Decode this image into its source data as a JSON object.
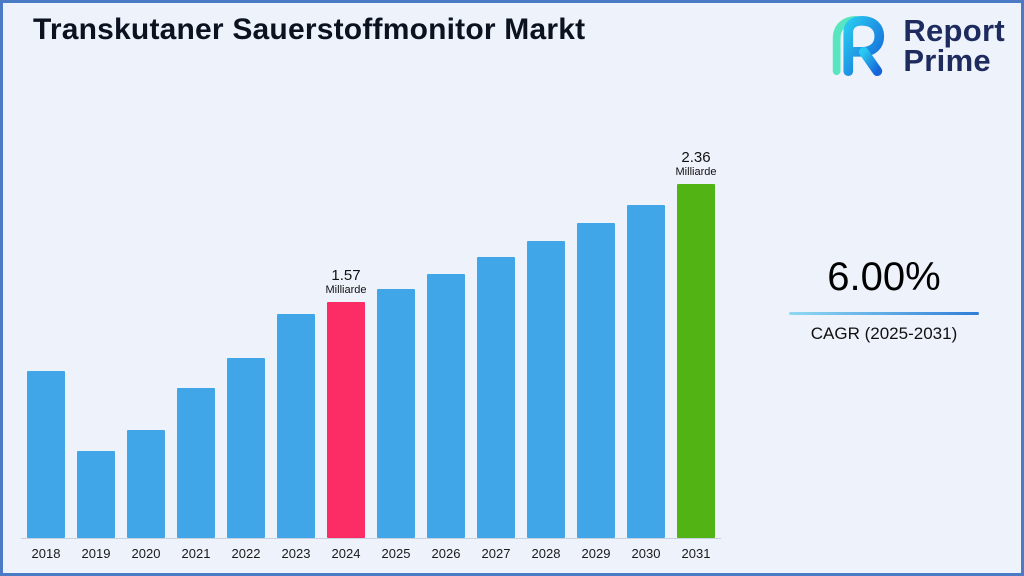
{
  "header": {
    "title": "Transkutaner Sauerstoffmonitor Markt"
  },
  "logo": {
    "line1": "Report",
    "line2": "Prime"
  },
  "cagr": {
    "value": "6.00%",
    "label": "CAGR (2025-2031)"
  },
  "chart_data": {
    "type": "bar",
    "title": "Transkutaner Sauerstoffmonitor Markt",
    "xlabel": "",
    "ylabel": "",
    "unit": "Milliarde",
    "ylim": [
      0,
      2.6
    ],
    "grid": false,
    "categories": [
      "2018",
      "2019",
      "2020",
      "2021",
      "2022",
      "2023",
      "2024",
      "2025",
      "2026",
      "2027",
      "2028",
      "2029",
      "2030",
      "2031"
    ],
    "values": [
      1.11,
      0.58,
      0.72,
      1.0,
      1.2,
      1.49,
      1.57,
      1.66,
      1.76,
      1.87,
      1.98,
      2.1,
      2.22,
      2.36
    ],
    "value_labels": {
      "2024": {
        "value": "1.57",
        "unit": "Milliarde"
      },
      "2031": {
        "value": "2.36",
        "unit": "Milliarde"
      }
    },
    "colors": {
      "default": "#41a6e8",
      "highlights": {
        "2024": "#fb2d64",
        "2031": "#52b414"
      }
    }
  }
}
